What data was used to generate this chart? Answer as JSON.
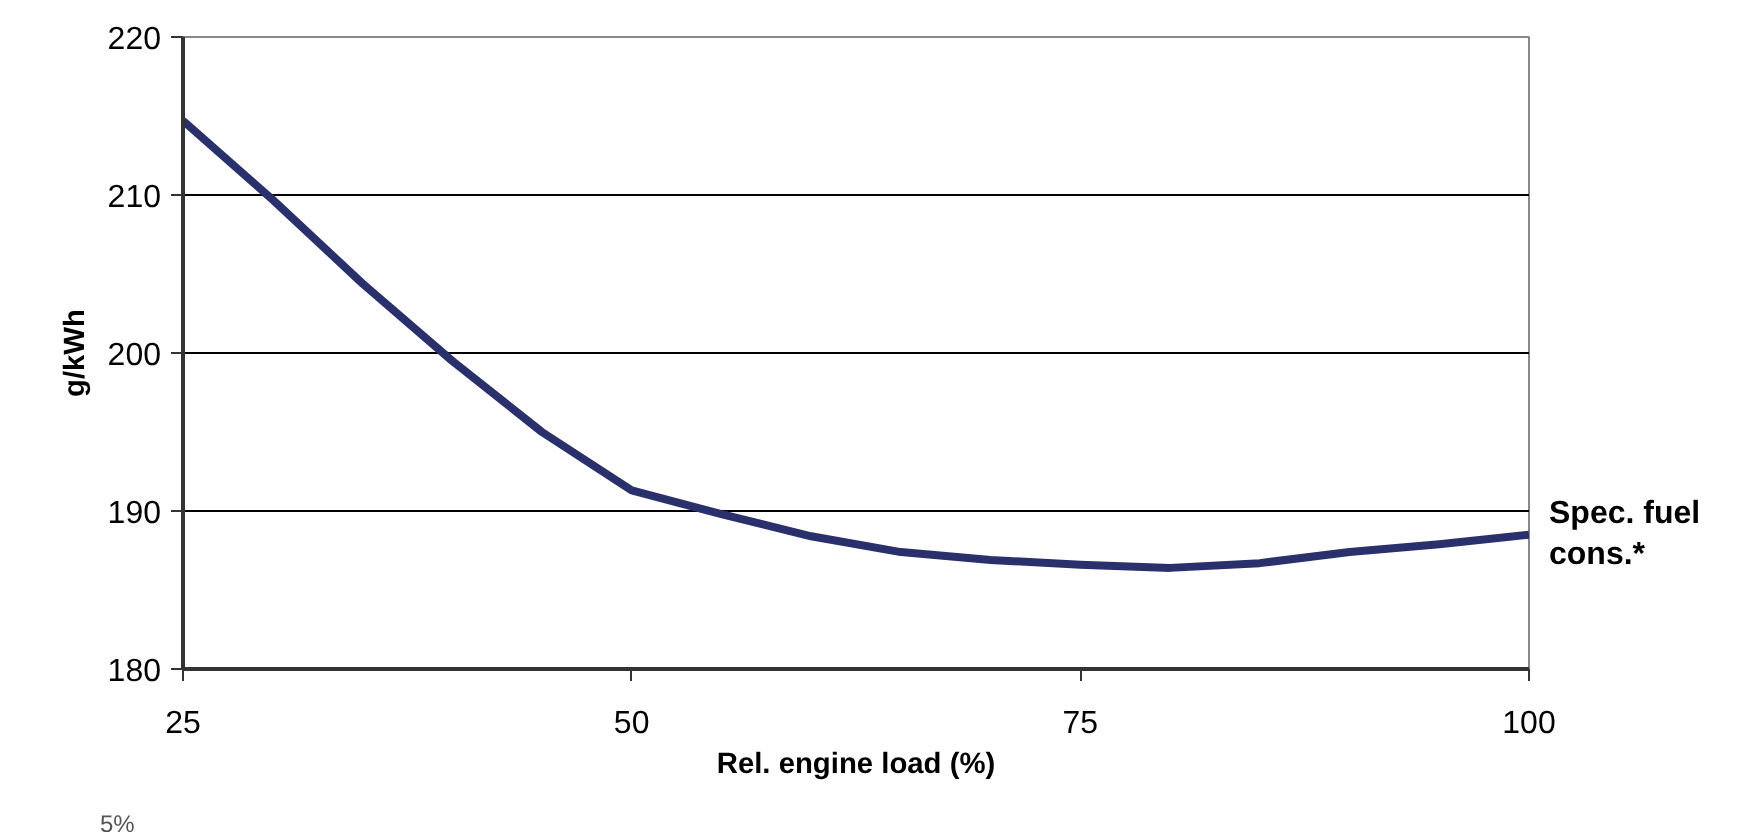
{
  "chart_data": {
    "type": "line",
    "xlabel": "Rel. engine load (%)",
    "ylabel": "g/kWh",
    "x": [
      25,
      30,
      35,
      40,
      45,
      50,
      55,
      60,
      65,
      70,
      75,
      80,
      85,
      90,
      95,
      100
    ],
    "series": [
      {
        "name": "Spec. fuel cons.*",
        "color": "#29306b",
        "values": [
          214.7,
          209.7,
          204.4,
          199.5,
          195.0,
          191.3,
          189.8,
          188.4,
          187.4,
          186.9,
          186.6,
          186.4,
          186.7,
          187.4,
          187.9,
          188.5
        ]
      }
    ],
    "xlim": [
      25,
      100
    ],
    "xticks": [
      25,
      50,
      75,
      100
    ],
    "ylim": [
      180,
      220
    ],
    "yticks": [
      180,
      190,
      200,
      210,
      220
    ],
    "grid": "y",
    "marker": "none",
    "line_style": "solid",
    "annotations": [
      "5%"
    ]
  }
}
